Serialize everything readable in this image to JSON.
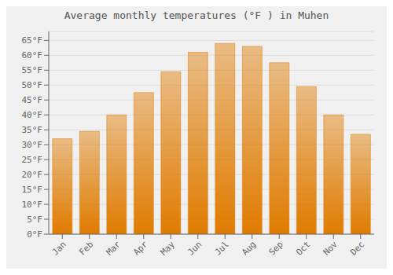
{
  "chart_data": {
    "type": "bar",
    "title": "Average monthly temperatures (°F ) in Muhen",
    "categories": [
      "Jan",
      "Feb",
      "Mar",
      "Apr",
      "May",
      "Jun",
      "Jul",
      "Aug",
      "Sep",
      "Oct",
      "Nov",
      "Dec"
    ],
    "values": [
      32,
      34.5,
      40,
      47.5,
      54.5,
      61,
      64,
      63,
      57.5,
      49.5,
      40,
      33.5
    ],
    "color": "#E07B00",
    "ylim": [
      0,
      68
    ],
    "yticks": [
      {
        "value": 0,
        "label": "0°F"
      },
      {
        "value": 5,
        "label": "5°F"
      },
      {
        "value": 10,
        "label": "10°F"
      },
      {
        "value": 15,
        "label": "15°F"
      },
      {
        "value": 20,
        "label": "20°F"
      },
      {
        "value": 25,
        "label": "25°F"
      },
      {
        "value": 30,
        "label": "30°F"
      },
      {
        "value": 35,
        "label": "35°F"
      },
      {
        "value": 40,
        "label": "40°F"
      },
      {
        "value": 45,
        "label": "45°F"
      },
      {
        "value": 50,
        "label": "50°F"
      },
      {
        "value": 55,
        "label": "55°F"
      },
      {
        "value": 60,
        "label": "60°F"
      },
      {
        "value": 65,
        "label": "65°F"
      }
    ],
    "grid": true
  }
}
